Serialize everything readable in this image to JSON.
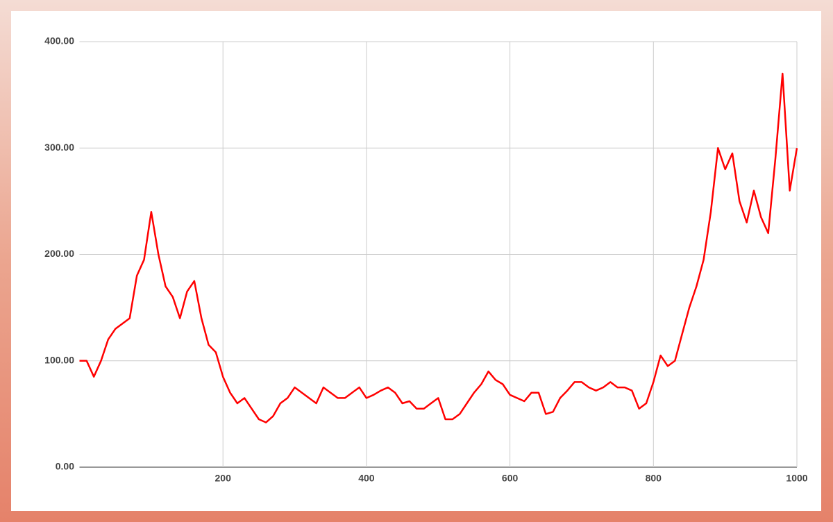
{
  "chart_data": {
    "type": "line",
    "x": [
      0,
      10,
      20,
      30,
      40,
      50,
      60,
      70,
      80,
      90,
      100,
      110,
      120,
      130,
      140,
      150,
      160,
      170,
      180,
      190,
      200,
      210,
      220,
      230,
      240,
      250,
      260,
      270,
      280,
      290,
      300,
      310,
      320,
      330,
      340,
      350,
      360,
      370,
      380,
      390,
      400,
      410,
      420,
      430,
      440,
      450,
      460,
      470,
      480,
      490,
      500,
      510,
      520,
      530,
      540,
      550,
      560,
      570,
      580,
      590,
      600,
      610,
      620,
      630,
      640,
      650,
      660,
      670,
      680,
      690,
      700,
      710,
      720,
      730,
      740,
      750,
      760,
      770,
      780,
      790,
      800,
      810,
      820,
      830,
      840,
      850,
      860,
      870,
      880,
      890,
      900,
      910,
      920,
      930,
      940,
      950,
      960,
      970,
      980,
      990,
      1000
    ],
    "values": [
      100,
      100,
      85,
      100,
      120,
      130,
      135,
      140,
      180,
      195,
      240,
      200,
      170,
      160,
      140,
      165,
      175,
      140,
      115,
      108,
      85,
      70,
      60,
      65,
      55,
      45,
      42,
      48,
      60,
      65,
      75,
      70,
      65,
      60,
      75,
      70,
      65,
      65,
      70,
      75,
      65,
      68,
      72,
      75,
      70,
      60,
      62,
      55,
      55,
      60,
      65,
      45,
      45,
      50,
      60,
      70,
      78,
      90,
      82,
      78,
      68,
      65,
      62,
      70,
      70,
      50,
      52,
      65,
      72,
      80,
      80,
      75,
      72,
      75,
      80,
      75,
      75,
      72,
      55,
      60,
      80,
      105,
      95,
      100,
      125,
      150,
      170,
      195,
      240,
      300,
      280,
      295,
      250,
      230,
      260,
      235,
      220,
      290,
      370,
      260,
      300
    ],
    "color": "#ff0000",
    "xlim": [
      0,
      1000
    ],
    "xticks": [
      200,
      400,
      600,
      800,
      1000
    ],
    "ylim": [
      0,
      400
    ],
    "yticks": [
      {
        "value": 0,
        "label": "0.00"
      },
      {
        "value": 100,
        "label": "100.00"
      },
      {
        "value": 200,
        "label": "200.00"
      },
      {
        "value": 300,
        "label": "300.00"
      },
      {
        "value": 400,
        "label": "400.00"
      }
    ],
    "grid": true
  }
}
